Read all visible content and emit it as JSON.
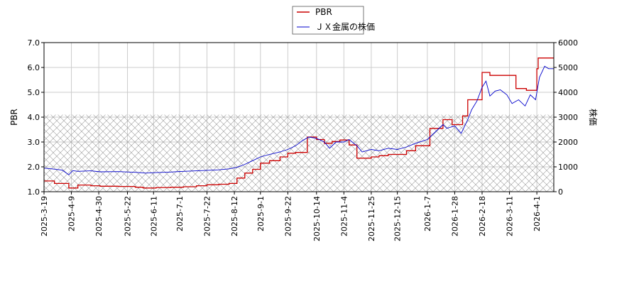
{
  "colors": {
    "pbr": "#cc0000",
    "price": "#0000cc",
    "grid": "#cccccc",
    "hatch": "#999999",
    "frame": "#000000"
  },
  "chart_data": {
    "type": "line",
    "legend": {
      "placement": "top-center",
      "entries": [
        "PBR",
        "ＪＸ金属の株価"
      ]
    },
    "ylabel_left": "PBR",
    "ylabel_right": "株価",
    "ylim_left": [
      1.0,
      7.0
    ],
    "ylim_right": [
      0,
      6000
    ],
    "yticks_left": [
      "1.0",
      "2.0",
      "3.0",
      "4.0",
      "5.0",
      "6.0",
      "7.0"
    ],
    "yticks_right": [
      "0",
      "1000",
      "2000",
      "3000",
      "4000",
      "5000",
      "6000"
    ],
    "xlim": [
      "2025-03-19",
      "2026-04-14"
    ],
    "xticks": [
      "2025-3-19",
      "2025-4-9",
      "2025-4-30",
      "2025-5-22",
      "2025-6-11",
      "2025-7-1",
      "2025-7-22",
      "2025-8-12",
      "2025-9-1",
      "2025-9-22",
      "2025-10-14",
      "2025-11-4",
      "2025-11-25",
      "2025-12-15",
      "2026-1-7",
      "2026-1-28",
      "2026-2-18",
      "2026-3-11",
      "2026-4-1"
    ],
    "xtick_dates": [
      "2025-03-19",
      "2025-04-09",
      "2025-04-30",
      "2025-05-22",
      "2025-06-11",
      "2025-07-01",
      "2025-07-22",
      "2025-08-12",
      "2025-09-01",
      "2025-09-22",
      "2025-10-14",
      "2025-11-04",
      "2025-11-25",
      "2025-12-15",
      "2026-01-07",
      "2026-01-28",
      "2026-02-18",
      "2026-03-11",
      "2026-04-01"
    ],
    "grid": true,
    "hatched_region_left_axis": [
      1.0,
      4.1
    ],
    "series": [
      {
        "name": "PBR",
        "axis": "left",
        "step": true,
        "points": [
          [
            "2025-03-19",
            1.43
          ],
          [
            "2025-03-27",
            1.33
          ],
          [
            "2025-04-07",
            1.15
          ],
          [
            "2025-04-14",
            1.27
          ],
          [
            "2025-04-24",
            1.24
          ],
          [
            "2025-05-01",
            1.22
          ],
          [
            "2025-05-15",
            1.21
          ],
          [
            "2025-05-28",
            1.18
          ],
          [
            "2025-06-03",
            1.15
          ],
          [
            "2025-06-13",
            1.17
          ],
          [
            "2025-06-24",
            1.18
          ],
          [
            "2025-07-04",
            1.2
          ],
          [
            "2025-07-14",
            1.24
          ],
          [
            "2025-07-22",
            1.28
          ],
          [
            "2025-07-31",
            1.3
          ],
          [
            "2025-08-08",
            1.33
          ],
          [
            "2025-08-14",
            1.55
          ],
          [
            "2025-08-20",
            1.75
          ],
          [
            "2025-08-26",
            1.9
          ],
          [
            "2025-09-01",
            2.15
          ],
          [
            "2025-09-08",
            2.25
          ],
          [
            "2025-09-16",
            2.4
          ],
          [
            "2025-09-22",
            2.55
          ],
          [
            "2025-09-28",
            2.58
          ],
          [
            "2025-10-07",
            3.2
          ],
          [
            "2025-10-14",
            3.1
          ],
          [
            "2025-10-20",
            2.95
          ],
          [
            "2025-10-26",
            3.02
          ],
          [
            "2025-11-01",
            3.08
          ],
          [
            "2025-11-08",
            2.88
          ],
          [
            "2025-11-14",
            2.35
          ],
          [
            "2025-11-25",
            2.4
          ],
          [
            "2025-12-01",
            2.45
          ],
          [
            "2025-12-08",
            2.5
          ],
          [
            "2025-12-22",
            2.65
          ],
          [
            "2025-12-29",
            2.85
          ],
          [
            "2026-01-09",
            3.55
          ],
          [
            "2026-01-19",
            3.9
          ],
          [
            "2026-01-26",
            3.7
          ],
          [
            "2026-02-03",
            4.05
          ],
          [
            "2026-02-07",
            4.7
          ],
          [
            "2026-02-18",
            5.8
          ],
          [
            "2026-02-24",
            5.68
          ],
          [
            "2026-03-16",
            5.15
          ],
          [
            "2026-03-24",
            5.08
          ],
          [
            "2026-04-01",
            5.95
          ],
          [
            "2026-04-02",
            6.38
          ],
          [
            "2026-04-14",
            6.38
          ]
        ]
      },
      {
        "name": "ＪＸ金属の株価",
        "axis": "right",
        "step": false,
        "points": [
          [
            "2025-03-19",
            950
          ],
          [
            "2025-03-25",
            920
          ],
          [
            "2025-04-02",
            870
          ],
          [
            "2025-04-07",
            680
          ],
          [
            "2025-04-10",
            850
          ],
          [
            "2025-04-14",
            820
          ],
          [
            "2025-04-24",
            840
          ],
          [
            "2025-05-01",
            800
          ],
          [
            "2025-05-15",
            810
          ],
          [
            "2025-05-28",
            780
          ],
          [
            "2025-06-05",
            750
          ],
          [
            "2025-06-13",
            770
          ],
          [
            "2025-06-24",
            790
          ],
          [
            "2025-07-04",
            820
          ],
          [
            "2025-07-14",
            840
          ],
          [
            "2025-07-22",
            860
          ],
          [
            "2025-07-31",
            880
          ],
          [
            "2025-08-08",
            920
          ],
          [
            "2025-08-14",
            980
          ],
          [
            "2025-08-20",
            1100
          ],
          [
            "2025-08-26",
            1250
          ],
          [
            "2025-09-01",
            1400
          ],
          [
            "2025-09-08",
            1500
          ],
          [
            "2025-09-16",
            1600
          ],
          [
            "2025-09-22",
            1700
          ],
          [
            "2025-09-28",
            1850
          ],
          [
            "2025-10-03",
            2050
          ],
          [
            "2025-10-08",
            2200
          ],
          [
            "2025-10-14",
            2150
          ],
          [
            "2025-10-20",
            2000
          ],
          [
            "2025-10-24",
            1750
          ],
          [
            "2025-10-29",
            2000
          ],
          [
            "2025-11-04",
            2000
          ],
          [
            "2025-11-08",
            2100
          ],
          [
            "2025-11-14",
            1850
          ],
          [
            "2025-11-18",
            1600
          ],
          [
            "2025-11-25",
            1700
          ],
          [
            "2025-12-01",
            1650
          ],
          [
            "2025-12-08",
            1750
          ],
          [
            "2025-12-15",
            1700
          ],
          [
            "2025-12-22",
            1800
          ],
          [
            "2025-12-29",
            1950
          ],
          [
            "2026-01-07",
            2100
          ],
          [
            "2026-01-13",
            2400
          ],
          [
            "2026-01-19",
            2700
          ],
          [
            "2026-01-22",
            2550
          ],
          [
            "2026-01-28",
            2650
          ],
          [
            "2026-02-02",
            2350
          ],
          [
            "2026-02-07",
            2900
          ],
          [
            "2026-02-10",
            3300
          ],
          [
            "2026-02-14",
            3650
          ],
          [
            "2026-02-18",
            4200
          ],
          [
            "2026-02-21",
            4450
          ],
          [
            "2026-02-24",
            3850
          ],
          [
            "2026-02-28",
            4050
          ],
          [
            "2026-03-04",
            4100
          ],
          [
            "2026-03-09",
            3900
          ],
          [
            "2026-03-13",
            3550
          ],
          [
            "2026-03-18",
            3700
          ],
          [
            "2026-03-23",
            3450
          ],
          [
            "2026-03-27",
            3900
          ],
          [
            "2026-03-31",
            3700
          ],
          [
            "2026-04-03",
            4600
          ],
          [
            "2026-04-07",
            5050
          ],
          [
            "2026-04-10",
            4950
          ],
          [
            "2026-04-14",
            4950
          ]
        ]
      }
    ]
  }
}
